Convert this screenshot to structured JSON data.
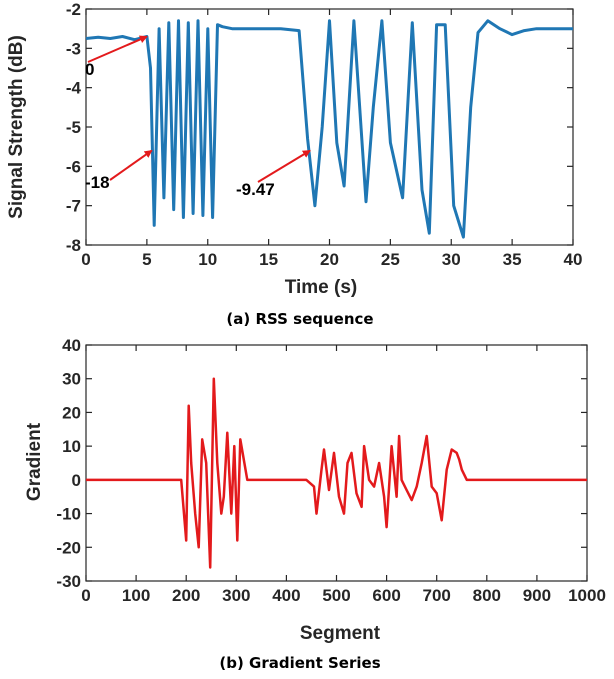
{
  "chart_data": [
    {
      "type": "line",
      "caption": "(a) RSS sequence",
      "xlabel": "Time (s)",
      "ylabel": "Signal Strength (dB)",
      "xlim": [
        0,
        40
      ],
      "ylim": [
        -8,
        -2
      ],
      "xticks": [
        "0",
        "5",
        "10",
        "15",
        "20",
        "25",
        "30",
        "35",
        "40"
      ],
      "yticks": [
        "-2",
        "-3",
        "-4",
        "-5",
        "-6",
        "-7",
        "-8"
      ],
      "grid": false,
      "color": "#1f77b4",
      "series": [
        {
          "x": [
            0,
            1,
            2,
            3,
            4,
            5,
            5.3,
            5.6,
            6.0,
            6.4,
            6.8,
            7.2,
            7.6,
            8.0,
            8.4,
            8.8,
            9.2,
            9.6,
            10.0,
            10.4,
            10.8,
            11.2,
            12,
            14,
            16,
            17.5,
            18.2,
            18.8,
            19.4,
            20,
            20.6,
            21.2,
            22.0,
            23.0,
            23.6,
            24.3,
            25,
            26.0,
            26.8,
            27.6,
            28.2,
            28.8,
            29.5,
            30.2,
            31.0,
            31.6,
            32.2,
            33,
            34,
            35,
            36,
            37,
            38,
            39,
            40
          ],
          "y": [
            -2.75,
            -2.72,
            -2.75,
            -2.7,
            -2.78,
            -2.7,
            -3.5,
            -7.5,
            -2.5,
            -6.8,
            -2.35,
            -7.1,
            -2.3,
            -7.3,
            -2.35,
            -7.2,
            -2.3,
            -7.25,
            -2.5,
            -7.3,
            -2.4,
            -2.45,
            -2.5,
            -2.5,
            -2.5,
            -2.55,
            -5.3,
            -7.0,
            -5.0,
            -2.3,
            -5.4,
            -6.5,
            -2.3,
            -6.9,
            -4.5,
            -2.3,
            -5.4,
            -6.8,
            -2.35,
            -6.6,
            -7.7,
            -2.4,
            -2.4,
            -7.0,
            -7.8,
            -4.5,
            -2.6,
            -2.3,
            -2.5,
            -2.65,
            -2.55,
            -2.5,
            -2.5,
            -2.5,
            -2.5
          ]
        }
      ],
      "annotations": [
        {
          "text": "0",
          "x": 5.0,
          "y": -2.7
        },
        {
          "text": "-18",
          "x": 5.4,
          "y": -5.6
        },
        {
          "text": "-9.47",
          "x": 18.4,
          "y": -5.6
        }
      ]
    },
    {
      "type": "line",
      "caption": "(b)  Gradient Series",
      "xlabel": "Segment",
      "ylabel": "Gradient",
      "xlim": [
        0,
        1000
      ],
      "ylim": [
        -30,
        40
      ],
      "xticks": [
        "0",
        "100",
        "200",
        "300",
        "400",
        "500",
        "600",
        "700",
        "800",
        "900",
        "1000"
      ],
      "yticks": [
        "40",
        "30",
        "20",
        "10",
        "0",
        "-10",
        "-20",
        "-30"
      ],
      "grid": false,
      "color": "#e31a1c",
      "series": [
        {
          "x": [
            0,
            100,
            190,
            200,
            205,
            210,
            218,
            225,
            232,
            240,
            248,
            255,
            262,
            270,
            275,
            282,
            290,
            296,
            302,
            308,
            315,
            322,
            330,
            400,
            440,
            455,
            460,
            470,
            475,
            485,
            495,
            505,
            515,
            522,
            530,
            540,
            550,
            555,
            565,
            575,
            585,
            595,
            600,
            610,
            620,
            625,
            630,
            640,
            650,
            660,
            670,
            680,
            690,
            700,
            710,
            720,
            730,
            740,
            745,
            750,
            760,
            770,
            800,
            900,
            1000
          ],
          "y": [
            0,
            0,
            0,
            -18,
            22,
            5,
            -10,
            -20,
            12,
            5,
            -26,
            30,
            5,
            -10,
            -5,
            14,
            -10,
            10,
            -18,
            12,
            6,
            0,
            0,
            0,
            0,
            -2,
            -10,
            3,
            9,
            -3,
            8,
            -5,
            -10,
            5,
            8,
            -4,
            -8,
            10,
            0,
            -2,
            5,
            -5,
            -14,
            10,
            -5,
            13,
            0,
            -3,
            -6,
            -2,
            5,
            13,
            -2,
            -4,
            -12,
            3,
            9,
            8,
            6,
            3,
            0,
            0,
            0,
            0,
            0
          ]
        }
      ]
    }
  ]
}
